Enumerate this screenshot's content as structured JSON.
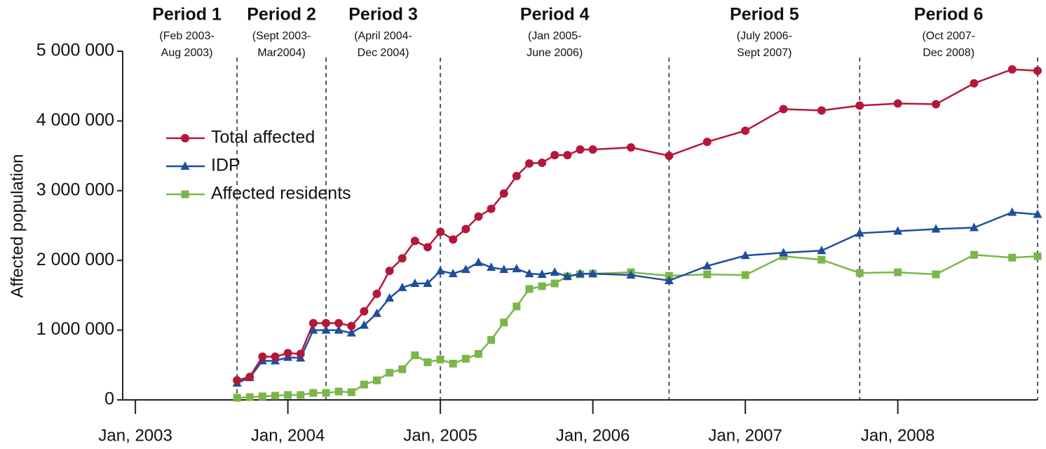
{
  "chart_data": {
    "type": "line",
    "y_label": "Affected population",
    "x": [
      "2003-09",
      "2003-10",
      "2003-11",
      "2003-12",
      "2004-01",
      "2004-02",
      "2004-03",
      "2004-04",
      "2004-05",
      "2004-06",
      "2004-07",
      "2004-08",
      "2004-09",
      "2004-10",
      "2004-11",
      "2004-12",
      "2005-01",
      "2005-02",
      "2005-03",
      "2005-04",
      "2005-05",
      "2005-06",
      "2005-07",
      "2005-08",
      "2005-09",
      "2005-10",
      "2005-11",
      "2005-12",
      "2006-01",
      "2006-04",
      "2006-07",
      "2006-10",
      "2007-01",
      "2007-04",
      "2007-07",
      "2007-10",
      "2008-01",
      "2008-04",
      "2008-07",
      "2008-10",
      "2008-12"
    ],
    "series": [
      {
        "name": "Total affected",
        "color": "#b5173a",
        "marker": "circle",
        "values": [
          280000,
          330000,
          620000,
          620000,
          670000,
          660000,
          1100000,
          1100000,
          1100000,
          1060000,
          1270000,
          1520000,
          1850000,
          2030000,
          2280000,
          2190000,
          2410000,
          2300000,
          2450000,
          2630000,
          2740000,
          2960000,
          3210000,
          3390000,
          3400000,
          3510000,
          3510000,
          3590000,
          3590000,
          3620000,
          3500000,
          3700000,
          3860000,
          4170000,
          4150000,
          4220000,
          4250000,
          4240000,
          4540000,
          4740000,
          4720000
        ]
      },
      {
        "name": "IDP",
        "color": "#1f4e9c",
        "marker": "triangle",
        "values": [
          240000,
          320000,
          560000,
          560000,
          610000,
          600000,
          1000000,
          1000000,
          1000000,
          960000,
          1070000,
          1240000,
          1460000,
          1610000,
          1670000,
          1670000,
          1850000,
          1810000,
          1870000,
          1970000,
          1900000,
          1870000,
          1880000,
          1810000,
          1800000,
          1830000,
          1770000,
          1810000,
          1810000,
          1790000,
          1710000,
          1920000,
          2070000,
          2110000,
          2140000,
          2390000,
          2420000,
          2450000,
          2470000,
          2690000,
          2660000
        ]
      },
      {
        "name": "Affected residents",
        "color": "#7ab648",
        "marker": "square",
        "values": [
          30000,
          40000,
          50000,
          60000,
          70000,
          70000,
          100000,
          100000,
          120000,
          110000,
          220000,
          280000,
          390000,
          440000,
          640000,
          540000,
          580000,
          520000,
          590000,
          660000,
          860000,
          1110000,
          1340000,
          1590000,
          1630000,
          1670000,
          1770000,
          1800000,
          1810000,
          1830000,
          1780000,
          1800000,
          1790000,
          2060000,
          2010000,
          1820000,
          1830000,
          1800000,
          2080000,
          2040000,
          2060000
        ]
      }
    ],
    "xlim": [
      "2002-12",
      "2008-12"
    ],
    "xticks": [
      {
        "value": "2003-01",
        "label": "Jan, 2003"
      },
      {
        "value": "2004-01",
        "label": "Jan, 2004"
      },
      {
        "value": "2005-01",
        "label": "Jan, 2005"
      },
      {
        "value": "2006-01",
        "label": "Jan, 2006"
      },
      {
        "value": "2007-01",
        "label": "Jan, 2007"
      },
      {
        "value": "2008-01",
        "label": "Jan, 2008"
      }
    ],
    "ylim": [
      0,
      5000000
    ],
    "yticks": [
      0,
      {
        "value": 1000000,
        "label": "1 000 000"
      },
      {
        "value": 2000000,
        "label": "2 000 000"
      },
      {
        "value": 3000000,
        "label": "3 000 000"
      },
      {
        "value": 4000000,
        "label": "4 000 000"
      },
      {
        "value": 5000000,
        "label": "5 000 000"
      }
    ],
    "legend": "upper left",
    "dividers": [
      "2003-09",
      "2004-04",
      "2005-01",
      "2006-07",
      "2007-10",
      "2008-12"
    ],
    "periods": [
      {
        "title": "Period 1",
        "lines": [
          "(Feb 2003-",
          "Aug 2003)"
        ]
      },
      {
        "title": "Period 2",
        "lines": [
          "(Sept 2003-",
          "Mar2004)"
        ]
      },
      {
        "title": "Period 3",
        "lines": [
          "(April 2004-",
          "Dec 2004)"
        ]
      },
      {
        "title": "Period 4",
        "lines": [
          "(Jan 2005-",
          "June 2006)"
        ]
      },
      {
        "title": "Period 5",
        "lines": [
          "(July 2006-",
          "Sept 2007)"
        ]
      },
      {
        "title": "Period 6",
        "lines": [
          "(Oct 2007-",
          "Dec 2008)"
        ]
      }
    ]
  }
}
